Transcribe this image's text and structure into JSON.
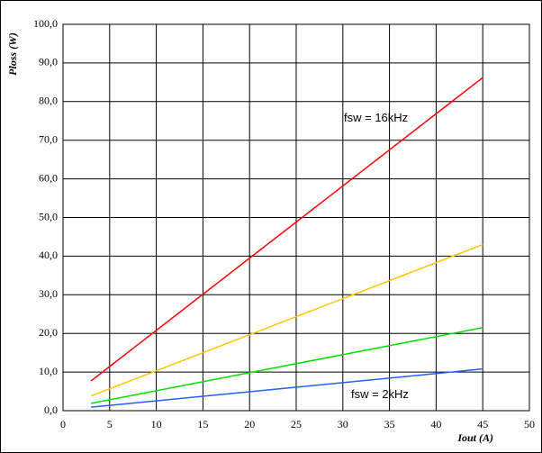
{
  "chart_data": {
    "type": "line",
    "x_label": "Iout (A)",
    "y_label": "Ploss (W)",
    "annotations": [
      "fsw = 16kHz",
      "fsw = 2kHz"
    ],
    "x": [
      3,
      45
    ],
    "series": [
      {
        "color": "#ff0000",
        "values": [
          7.7,
          86.2
        ]
      },
      {
        "color": "#ffc800",
        "values": [
          3.8,
          43.0
        ]
      },
      {
        "color": "#00e000",
        "values": [
          1.9,
          21.5
        ]
      },
      {
        "color": "#2060ff",
        "values": [
          0.9,
          10.8
        ]
      }
    ],
    "xlim": [
      0,
      50
    ],
    "xticks": [
      0,
      5,
      10,
      15,
      20,
      25,
      30,
      35,
      40,
      45,
      50
    ],
    "ylim": [
      0,
      100
    ],
    "yticks": [
      {
        "value": 0,
        "label": "0,0"
      },
      {
        "value": 10,
        "label": "10,0"
      },
      {
        "value": 20,
        "label": "20,0"
      },
      {
        "value": 30,
        "label": "30,0"
      },
      {
        "value": 40,
        "label": "40,0"
      },
      {
        "value": 50,
        "label": "50,0"
      },
      {
        "value": 60,
        "label": "60,0"
      },
      {
        "value": 70,
        "label": "70,0"
      },
      {
        "value": 80,
        "label": "80,0"
      },
      {
        "value": 90,
        "label": "90,0"
      },
      {
        "value": 100,
        "label": "100,0"
      }
    ],
    "grid": true
  }
}
